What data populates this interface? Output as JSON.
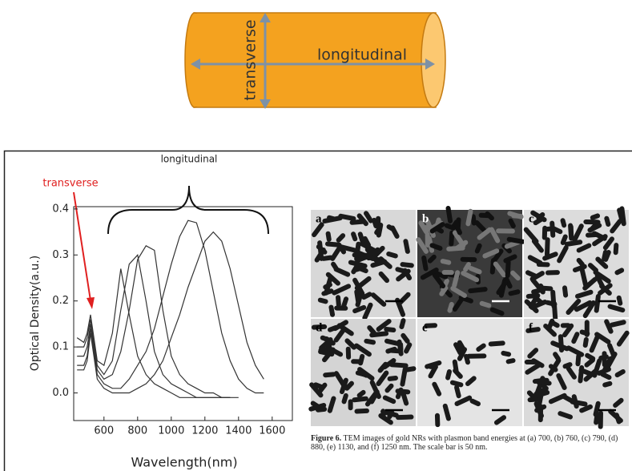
{
  "diagram": {
    "labels": [
      "transverse",
      "longitudinal"
    ]
  },
  "chart_data": {
    "type": "line",
    "x_label": "Wavelength(nm)",
    "y_label": "Optical Density(a.u.)",
    "annotations": [
      "transverse",
      "longitudinal"
    ],
    "xlim": [
      420,
      1720
    ],
    "ylim": [
      -0.06,
      0.405
    ],
    "xticks": [
      600,
      800,
      1000,
      1200,
      1400,
      1600
    ],
    "yticks": [
      {
        "value": 0,
        "label": "0.0"
      },
      0.1,
      0.2,
      0.3,
      0.4
    ],
    "x": [
      440,
      480,
      500,
      520,
      540,
      560,
      600,
      650,
      700,
      750,
      800,
      850,
      900,
      950,
      1000,
      1050,
      1100,
      1150,
      1200,
      1250,
      1300,
      1350,
      1400,
      1450,
      1500,
      1550
    ],
    "series": [
      {
        "color": "#333333",
        "values": [
          0.12,
          0.11,
          0.13,
          0.17,
          0.12,
          0.07,
          0.06,
          0.13,
          0.27,
          0.17,
          0.08,
          0.04,
          0.02,
          0.01,
          0.0,
          -0.01,
          -0.01,
          -0.01,
          -0.01,
          -0.01,
          -0.01,
          -0.01,
          null,
          null,
          null,
          null
        ]
      },
      {
        "color": "#333333",
        "values": [
          0.1,
          0.1,
          0.12,
          0.16,
          0.11,
          0.06,
          0.04,
          0.07,
          0.18,
          0.28,
          0.3,
          0.2,
          0.09,
          0.04,
          0.02,
          0.01,
          0.0,
          -0.01,
          -0.01,
          -0.01,
          -0.01,
          -0.01,
          null,
          null,
          null,
          null
        ]
      },
      {
        "color": "#333333",
        "values": [
          0.08,
          0.08,
          0.1,
          0.15,
          0.1,
          0.05,
          0.03,
          0.04,
          0.09,
          0.18,
          0.29,
          0.32,
          0.31,
          0.18,
          0.08,
          0.04,
          0.02,
          0.01,
          0.0,
          0.0,
          -0.01,
          -0.01,
          -0.01,
          null,
          null,
          null
        ]
      },
      {
        "color": "#333333",
        "values": [
          0.06,
          0.06,
          0.08,
          0.14,
          0.09,
          0.04,
          0.02,
          0.01,
          0.01,
          0.03,
          0.06,
          0.09,
          0.14,
          0.21,
          0.28,
          0.34,
          0.375,
          0.37,
          0.31,
          0.22,
          0.13,
          0.07,
          0.03,
          0.01,
          0.0,
          0.0
        ]
      },
      {
        "color": "#333333",
        "values": [
          0.05,
          0.05,
          0.07,
          0.13,
          0.08,
          0.03,
          0.01,
          0.0,
          0.0,
          0.0,
          0.01,
          0.02,
          0.04,
          0.07,
          0.12,
          0.17,
          0.23,
          0.28,
          0.33,
          0.35,
          0.33,
          0.27,
          0.19,
          0.11,
          0.06,
          0.03
        ]
      }
    ]
  },
  "figure": {
    "panels": [
      "a",
      "b",
      "c",
      "d",
      "e",
      "f"
    ],
    "caption_label": "Figure 6.",
    "caption": "TEM images of gold NRs with plasmon band energies at (a) 700, (b) 760, (c) 790, (d) 880, (e) 1130, and (f) 1250 nm. The scale bar is 50 nm."
  }
}
